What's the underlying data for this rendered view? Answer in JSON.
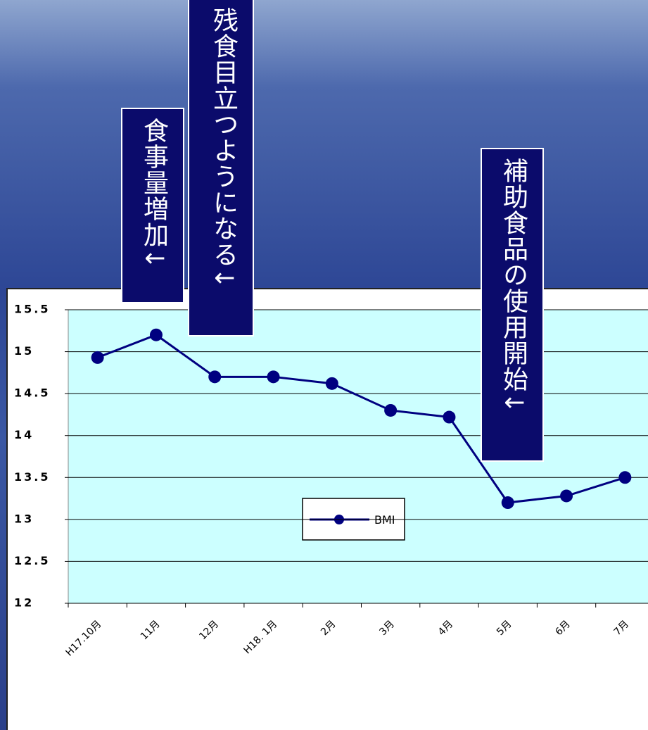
{
  "chart_data": {
    "type": "line",
    "categories": [
      "H17.10月",
      "11月",
      "12月",
      "H18. 1月",
      "2月",
      "3月",
      "4月",
      "5月",
      "6月",
      "7月"
    ],
    "series": [
      {
        "name": "BMI",
        "color": "#000080",
        "values": [
          14.93,
          15.2,
          14.7,
          14.7,
          14.62,
          14.3,
          14.22,
          13.2,
          13.28,
          13.5
        ]
      }
    ],
    "ylim": [
      12,
      15.5
    ],
    "yticks": [
      12,
      12.5,
      13,
      13.5,
      14,
      14.5,
      15,
      15.5
    ],
    "grid": true,
    "annotations": [
      "食事量増加↓",
      "残食目立つようになる↓",
      "補助食品の使用開始↓"
    ]
  }
}
